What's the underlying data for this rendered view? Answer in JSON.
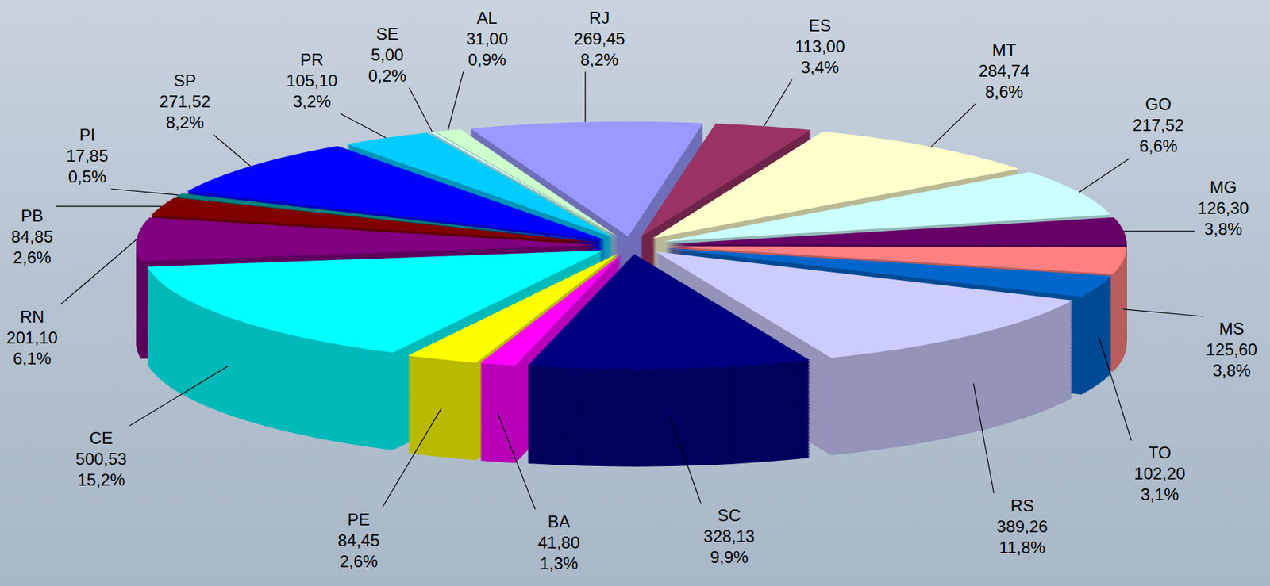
{
  "chart_data": {
    "type": "pie",
    "categories": [
      "RJ",
      "ES",
      "MT",
      "GO",
      "MG",
      "MS",
      "TO",
      "RS",
      "SC",
      "BA",
      "PE",
      "CE",
      "RN",
      "PB",
      "PI",
      "SP",
      "PR",
      "SE",
      "AL"
    ],
    "values": [
      269.45,
      113,
      284.74,
      217.52,
      126.3,
      125.6,
      102.2,
      389.26,
      328.13,
      41.8,
      84.45,
      500.53,
      201.1,
      84.85,
      17.85,
      271.52,
      105.1,
      5,
      31
    ],
    "value_labels": [
      "269,45",
      "113,00",
      "284,74",
      "217,52",
      "126,30",
      "125,60",
      "102,20",
      "389,26",
      "328,13",
      "41,80",
      "84,45",
      "500,53",
      "201,10",
      "84,85",
      "17,85",
      "271,52",
      "105,10",
      "5,00",
      "31,00"
    ],
    "percentages": [
      8.2,
      3.4,
      8.6,
      6.6,
      3.8,
      3.8,
      3.1,
      11.8,
      9.9,
      1.3,
      2.6,
      15.2,
      6.1,
      2.6,
      0.5,
      8.2,
      3.2,
      0.2,
      0.9
    ],
    "percentage_labels": [
      "8,2%",
      "3,4%",
      "8,6%",
      "6,6%",
      "3,8%",
      "3,8%",
      "3,1%",
      "11,8%",
      "9,9%",
      "1,3%",
      "2,6%",
      "15,2%",
      "6,1%",
      "2,6%",
      "0,5%",
      "8,2%",
      "3,2%",
      "0,2%",
      "0,9%"
    ],
    "colors": [
      "#9999ff",
      "#993366",
      "#ffffcc",
      "#ccffff",
      "#660066",
      "#ff8080",
      "#0066cc",
      "#ccccff",
      "#000080",
      "#ff00ff",
      "#ffff00",
      "#00ffff",
      "#800080",
      "#800000",
      "#008080",
      "#0000ff",
      "#00ccff",
      "#ccffff",
      "#ccffcc"
    ],
    "data_labels": true
  }
}
